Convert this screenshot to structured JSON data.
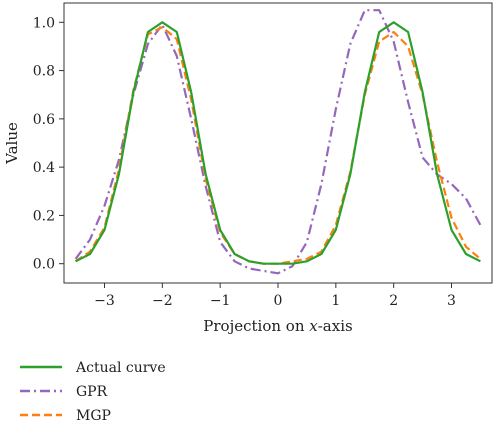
{
  "chart_data": {
    "type": "line",
    "title": "",
    "xlabel_prefix": "Projection on ",
    "xlabel_var": "x",
    "xlabel_suffix": "-axis",
    "ylabel": "Value",
    "xlim": [
      -3.7,
      3.7
    ],
    "ylim": [
      -0.08,
      1.08
    ],
    "xticks": [
      -3,
      -2,
      -1,
      0,
      1,
      2,
      3
    ],
    "xtick_labels": [
      "−3",
      "−2",
      "−1",
      "0",
      "1",
      "2",
      "3"
    ],
    "yticks": [
      0.0,
      0.2,
      0.4,
      0.6,
      0.8,
      1.0
    ],
    "ytick_labels": [
      "0.0",
      "0.2",
      "0.4",
      "0.6",
      "0.8",
      "1.0"
    ],
    "grid": false,
    "legend_position": "bottom-left-outside",
    "series": [
      {
        "name": "Actual curve",
        "color": "#2ca02c",
        "style": "solid",
        "x": [
          -3.5,
          -3.25,
          -3.0,
          -2.75,
          -2.5,
          -2.25,
          -2.0,
          -1.75,
          -1.5,
          -1.25,
          -1.0,
          -0.75,
          -0.5,
          -0.25,
          0.0,
          0.25,
          0.5,
          0.75,
          1.0,
          1.25,
          1.5,
          1.75,
          2.0,
          2.25,
          2.5,
          2.75,
          3.0,
          3.25,
          3.5
        ],
        "y": [
          0.01,
          0.04,
          0.14,
          0.37,
          0.71,
          0.96,
          1.0,
          0.96,
          0.71,
          0.37,
          0.14,
          0.04,
          0.01,
          0.0,
          0.0,
          0.0,
          0.01,
          0.04,
          0.14,
          0.37,
          0.71,
          0.96,
          1.0,
          0.96,
          0.71,
          0.37,
          0.14,
          0.04,
          0.01
        ]
      },
      {
        "name": "GPR",
        "color": "#9467bd",
        "style": "dashdot",
        "x": [
          -3.5,
          -3.25,
          -3.0,
          -2.75,
          -2.5,
          -2.25,
          -2.0,
          -1.75,
          -1.5,
          -1.25,
          -1.0,
          -0.75,
          -0.5,
          -0.25,
          0.0,
          0.25,
          0.5,
          0.75,
          1.0,
          1.25,
          1.5,
          1.75,
          2.0,
          2.25,
          2.5,
          2.75,
          3.0,
          3.25,
          3.5
        ],
        "y": [
          0.02,
          0.1,
          0.24,
          0.43,
          0.7,
          0.91,
          0.99,
          0.86,
          0.6,
          0.32,
          0.09,
          0.01,
          -0.02,
          -0.03,
          -0.04,
          -0.01,
          0.09,
          0.33,
          0.64,
          0.91,
          1.05,
          1.05,
          0.92,
          0.67,
          0.44,
          0.37,
          0.33,
          0.27,
          0.16
        ]
      },
      {
        "name": "MGP",
        "color": "#ff7f0e",
        "style": "dashed",
        "x": [
          -3.5,
          -3.25,
          -3.0,
          -2.75,
          -2.5,
          -2.25,
          -2.0,
          -1.75,
          -1.5,
          -1.25,
          -1.0,
          -0.75,
          -0.5,
          -0.25,
          0.0,
          0.25,
          0.5,
          0.75,
          1.0,
          1.25,
          1.5,
          1.75,
          2.0,
          2.25,
          2.5,
          2.75,
          3.0,
          3.25,
          3.5
        ],
        "y": [
          0.01,
          0.05,
          0.15,
          0.39,
          0.72,
          0.95,
          0.98,
          0.93,
          0.68,
          0.35,
          0.13,
          0.04,
          0.01,
          0.0,
          0.0,
          0.01,
          0.02,
          0.05,
          0.16,
          0.38,
          0.7,
          0.92,
          0.96,
          0.9,
          0.7,
          0.42,
          0.19,
          0.07,
          0.02
        ]
      }
    ]
  }
}
